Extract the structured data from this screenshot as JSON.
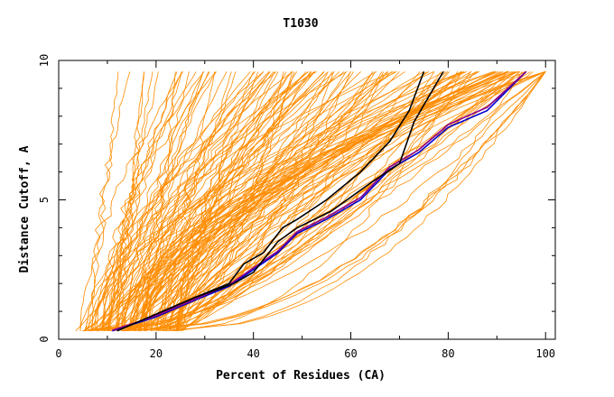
{
  "chart_data": {
    "type": "line",
    "title": "T1030",
    "xlabel": "Percent of Residues (CA)",
    "ylabel": "Distance Cutoff, A",
    "xlim": [
      0,
      102
    ],
    "ylim": [
      0,
      10
    ],
    "x_ticks": [
      "0",
      "20",
      "40",
      "60",
      "80",
      "100"
    ],
    "y_ticks": [
      "0",
      "5",
      "10"
    ],
    "grid": false,
    "legend": "none",
    "colors": {
      "background_models": "#ff8c00",
      "highlight_blue": "#0000cc",
      "highlight_black": "#000000",
      "highlight_purple": "#8b008b"
    },
    "background_model_count": 150,
    "series": [
      {
        "color": "#0000cc",
        "x": [
          11,
          20,
          28,
          35,
          40,
          45,
          49,
          55,
          62,
          68,
          74,
          80,
          88,
          96
        ],
        "y": [
          0.3,
          0.8,
          1.4,
          1.9,
          2.5,
          3.1,
          3.8,
          4.3,
          5.0,
          6.1,
          6.7,
          7.6,
          8.2,
          9.6
        ]
      },
      {
        "color": "#8b008b",
        "x": [
          11,
          20,
          28,
          35,
          40,
          45,
          49,
          55,
          62,
          68,
          74,
          80,
          88,
          96
        ],
        "y": [
          0.32,
          0.84,
          1.44,
          1.95,
          2.56,
          3.16,
          3.86,
          4.38,
          5.08,
          6.18,
          6.8,
          7.7,
          8.32,
          9.6
        ]
      },
      {
        "color": "#000000",
        "x": [
          12,
          20,
          28,
          35,
          38,
          42,
          46,
          49,
          55,
          62,
          68,
          72,
          75
        ],
        "y": [
          0.3,
          0.9,
          1.5,
          2.0,
          2.7,
          3.1,
          4.0,
          4.3,
          5.0,
          6.0,
          7.1,
          8.2,
          9.6
        ]
      },
      {
        "color": "#000000",
        "x": [
          12,
          20,
          28,
          36,
          40,
          45,
          49,
          56,
          64,
          70,
          73,
          79
        ],
        "y": [
          0.3,
          0.9,
          1.5,
          2.0,
          2.4,
          3.5,
          4.0,
          4.6,
          5.6,
          6.3,
          7.8,
          9.6
        ]
      }
    ]
  }
}
